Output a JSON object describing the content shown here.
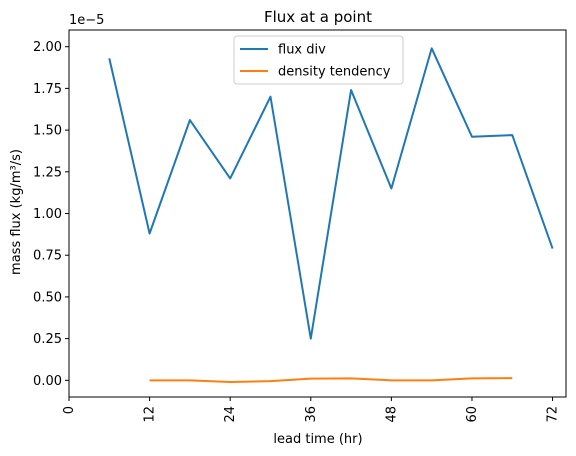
{
  "chart_data": {
    "type": "line",
    "title": "Flux at a point",
    "xlabel": "lead time (hr)",
    "ylabel": "mass flux (kg/m³/s)",
    "y_offset_label": "1e−5",
    "xlim": [
      0,
      74
    ],
    "ylim": [
      -0.1,
      2.1
    ],
    "x_ticks": [
      0,
      12,
      24,
      36,
      48,
      60,
      72
    ],
    "x_tick_labels": [
      "0",
      "12",
      "24",
      "36",
      "48",
      "60",
      "72"
    ],
    "y_ticks": [
      0.0,
      0.25,
      0.5,
      0.75,
      1.0,
      1.25,
      1.5,
      1.75,
      2.0
    ],
    "y_tick_labels": [
      "0.00",
      "0.25",
      "0.50",
      "0.75",
      "1.00",
      "1.25",
      "1.50",
      "1.75",
      "2.00"
    ],
    "grid": false,
    "legend_position": "top-center",
    "series": [
      {
        "name": "flux div",
        "color": "#1f77b4",
        "x": [
          6,
          12,
          18,
          24,
          30,
          36,
          42,
          48,
          54,
          60,
          66,
          72
        ],
        "y": [
          1.93,
          0.88,
          1.56,
          1.21,
          1.7,
          0.25,
          1.74,
          1.15,
          1.99,
          1.46,
          1.47,
          0.79
        ]
      },
      {
        "name": "density tendency",
        "color": "#ff7f0e",
        "x": [
          12,
          18,
          24,
          30,
          36,
          42,
          48,
          54,
          60,
          66
        ],
        "y": [
          0.0,
          0.0,
          -0.01,
          -0.005,
          0.01,
          0.012,
          0.0,
          0.0,
          0.012,
          0.013
        ]
      }
    ]
  }
}
